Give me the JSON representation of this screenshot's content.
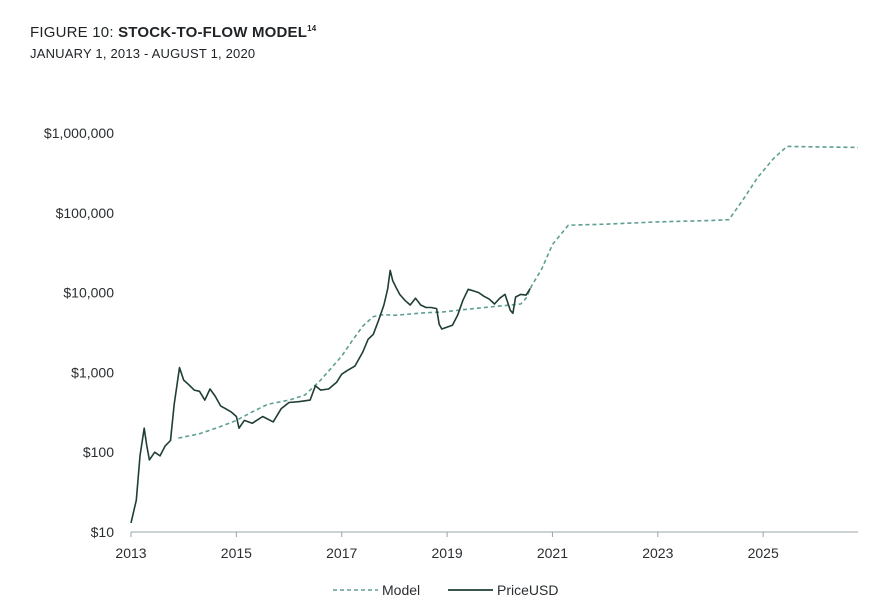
{
  "header": {
    "title_prefix": "FIGURE 10: ",
    "title_main": "STOCK-TO-FLOW MODEL",
    "title_sup": "14",
    "subtitle": "JANUARY 1, 2013 - AUGUST 1, 2020"
  },
  "colors": {
    "model": "#5e9e93",
    "price": "#1f3e34",
    "axis": "#9aa4a9",
    "text": "#2a2e31"
  },
  "chart_data": {
    "type": "line",
    "title": "STOCK-TO-FLOW MODEL",
    "subtitle": "JANUARY 1, 2013 - AUGUST 1, 2020",
    "xlabel": "",
    "ylabel": "",
    "y_scale": "log",
    "xlim": [
      2013.0,
      2026.8
    ],
    "ylim": [
      10,
      1000000
    ],
    "x_ticks": [
      2013,
      2015,
      2017,
      2019,
      2021,
      2023,
      2025
    ],
    "x_tick_labels": [
      "2013",
      "2015",
      "2017",
      "2019",
      "2021",
      "2023",
      "2025"
    ],
    "y_ticks": [
      10,
      100,
      1000,
      10000,
      100000,
      1000000
    ],
    "y_tick_labels": [
      "$10",
      "$100",
      "$1,000",
      "$10,000",
      "$100,000",
      "$1,000,000"
    ],
    "grid": false,
    "legend": "bottom-center",
    "legend_labels": [
      "Model",
      "PriceUSD"
    ],
    "series": [
      {
        "name": "Model",
        "style": "dashed",
        "x": [
          2013.9,
          2014.3,
          2014.7,
          2015.0,
          2015.3,
          2015.6,
          2016.0,
          2016.3,
          2016.6,
          2017.0,
          2017.2,
          2017.4,
          2017.6,
          2017.8,
          2018.0,
          2018.3,
          2018.6,
          2018.9,
          2019.1,
          2019.3,
          2019.6,
          2019.9,
          2020.2,
          2020.4,
          2020.5,
          2020.6,
          2020.8,
          2021.0,
          2021.3,
          2022.0,
          2023.0,
          2024.0,
          2024.35,
          2024.6,
          2024.9,
          2025.2,
          2025.45,
          2026.0,
          2026.8
        ],
        "y": [
          150,
          170,
          210,
          250,
          320,
          400,
          450,
          520,
          800,
          1600,
          2500,
          3800,
          5000,
          5300,
          5200,
          5400,
          5600,
          5700,
          5900,
          6100,
          6400,
          6700,
          7000,
          7200,
          8500,
          12000,
          20000,
          40000,
          70000,
          72000,
          77000,
          80000,
          82000,
          140000,
          280000,
          480000,
          680000,
          670000,
          660000
        ]
      },
      {
        "name": "PriceUSD",
        "style": "solid",
        "x": [
          2013.0,
          2013.1,
          2013.17,
          2013.25,
          2013.3,
          2013.35,
          2013.45,
          2013.55,
          2013.65,
          2013.75,
          2013.82,
          2013.92,
          2014.0,
          2014.1,
          2014.2,
          2014.3,
          2014.4,
          2014.5,
          2014.6,
          2014.7,
          2014.8,
          2014.9,
          2015.0,
          2015.05,
          2015.15,
          2015.3,
          2015.5,
          2015.7,
          2015.85,
          2016.0,
          2016.2,
          2016.4,
          2016.5,
          2016.6,
          2016.75,
          2016.9,
          2017.0,
          2017.1,
          2017.25,
          2017.4,
          2017.5,
          2017.6,
          2017.7,
          2017.8,
          2017.87,
          2017.92,
          2017.97,
          2018.05,
          2018.1,
          2018.2,
          2018.3,
          2018.4,
          2018.5,
          2018.6,
          2018.7,
          2018.8,
          2018.85,
          2018.9,
          2019.0,
          2019.1,
          2019.2,
          2019.3,
          2019.4,
          2019.5,
          2019.6,
          2019.7,
          2019.8,
          2019.9,
          2020.0,
          2020.1,
          2020.2,
          2020.25,
          2020.3,
          2020.4,
          2020.5,
          2020.58
        ],
        "y": [
          13,
          25,
          90,
          200,
          120,
          80,
          100,
          90,
          120,
          140,
          400,
          1150,
          800,
          700,
          600,
          580,
          450,
          620,
          500,
          380,
          350,
          320,
          280,
          200,
          250,
          230,
          280,
          240,
          350,
          420,
          430,
          450,
          680,
          600,
          620,
          750,
          950,
          1050,
          1200,
          1800,
          2600,
          3000,
          4500,
          7000,
          11000,
          19000,
          14000,
          11000,
          9500,
          8000,
          7000,
          8500,
          7000,
          6500,
          6500,
          6300,
          4000,
          3500,
          3700,
          3900,
          5200,
          8000,
          11000,
          10500,
          10000,
          9000,
          8300,
          7200,
          8500,
          9500,
          6000,
          5500,
          8800,
          9500,
          9300,
          11300
        ]
      }
    ]
  }
}
